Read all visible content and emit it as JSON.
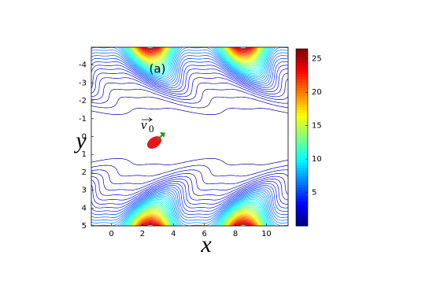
{
  "chart_data": {
    "type": "contour",
    "annotation": "(a)",
    "xlabel": "x",
    "ylabel": "y",
    "velocity_label": {
      "symbol": "v",
      "subscript": "0"
    },
    "xlim": [
      -1.3,
      11.4
    ],
    "xticks": [
      0,
      2,
      4,
      6,
      8,
      10
    ],
    "ylim": [
      5,
      -5
    ],
    "yticks": [
      -4,
      -3,
      -2,
      -1,
      0,
      1,
      2,
      3,
      4,
      5
    ],
    "clim": [
      0,
      26.5
    ],
    "cticks": [
      5,
      10,
      15,
      20,
      25
    ],
    "colormap": "jet",
    "field": {
      "peak": 27,
      "period": 6,
      "peak_x": 2.5,
      "shear": 0.55,
      "power": 3
    },
    "levels": [
      0.4,
      0.9,
      1.4,
      1.9,
      2.4,
      2.9,
      3.4,
      3.9,
      4.4,
      4.9,
      5.4,
      5.9,
      6.4,
      6.9,
      7.4,
      7.9,
      8.4,
      8.9,
      9.4,
      9.9,
      10.4,
      10.9,
      11.4,
      11.9,
      12.4,
      12.9,
      13.4,
      13.9,
      14.4,
      14.9,
      15.4,
      15.9,
      16.4,
      16.9,
      17.4,
      17.9,
      18.4,
      18.9,
      19.4,
      19.9,
      20.4,
      20.9,
      21.4,
      21.9,
      22.4,
      22.9,
      23.4,
      23.9,
      24.4,
      24.9,
      25.4,
      25.9
    ]
  }
}
